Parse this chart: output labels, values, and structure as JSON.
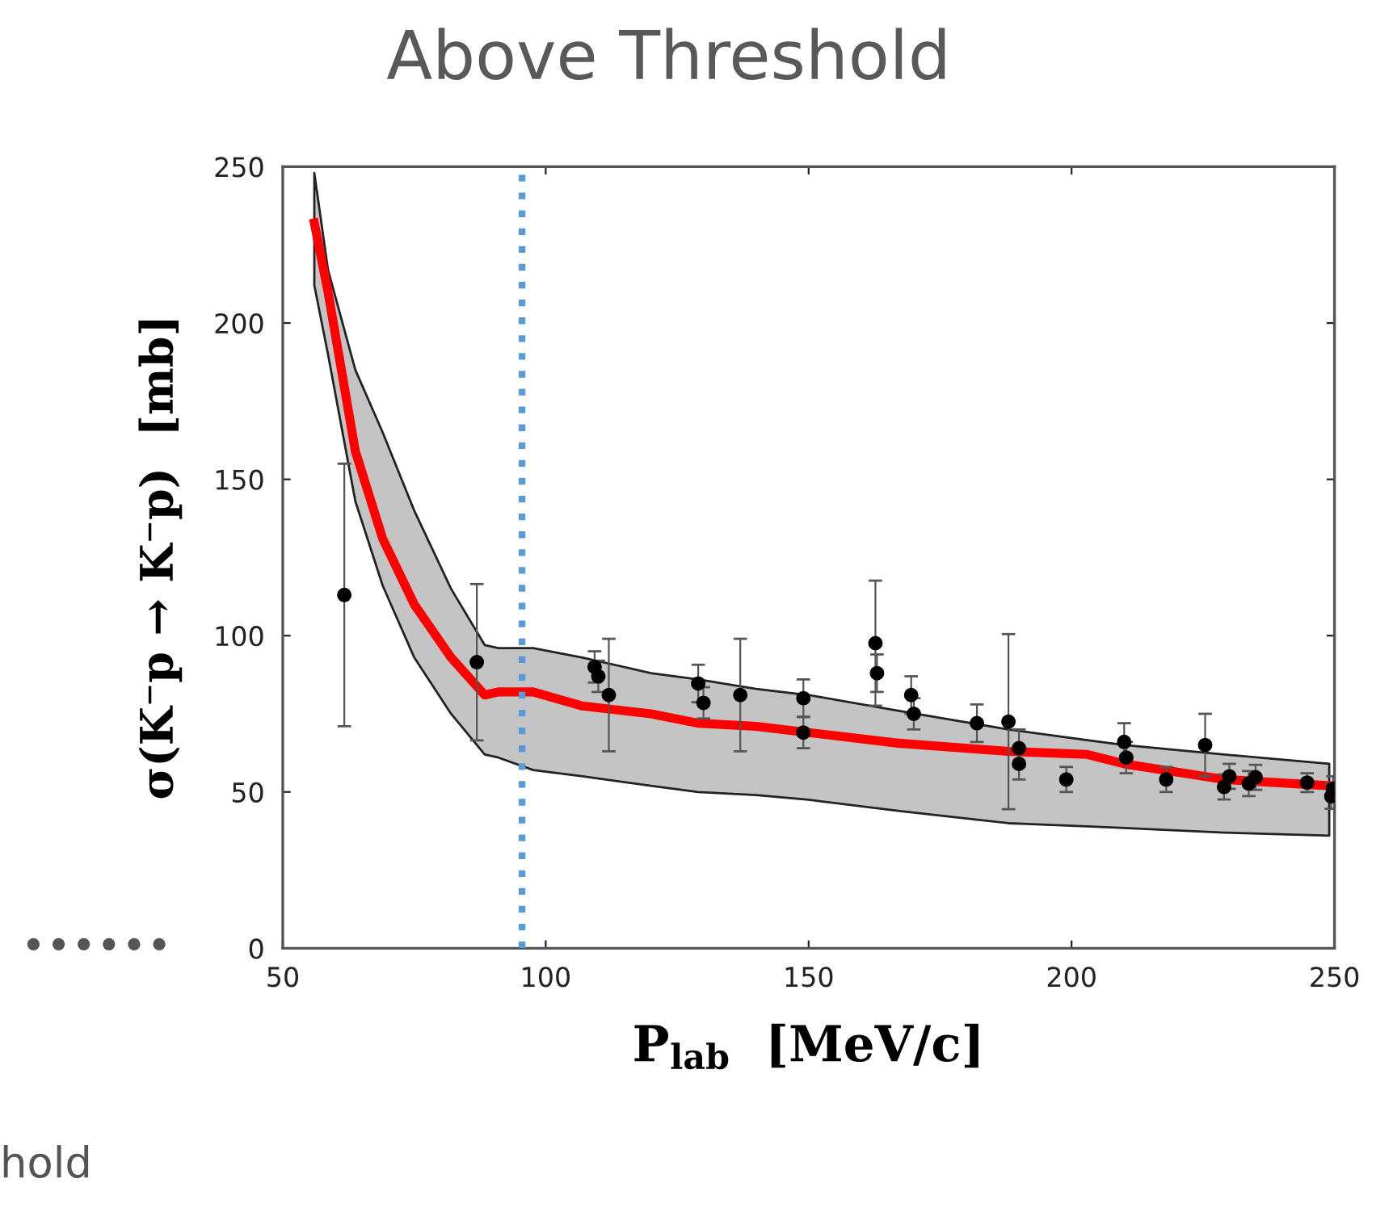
{
  "chart_data": {
    "type": "line",
    "title": "Above Threshold",
    "xlabel": "P$_{lab}$  [MeV/c]",
    "ylabel": "σ(K⁻p → K⁻p)  [mb]",
    "annotations": [
      "••••••",
      "hold"
    ],
    "xlim": [
      50,
      250
    ],
    "ylim": [
      0,
      250
    ],
    "xticks": [
      50,
      100,
      150,
      200,
      250
    ],
    "yticks": [
      0,
      50,
      100,
      150,
      200,
      250
    ],
    "grid": false,
    "legend": false,
    "ref_lines": [
      {
        "axis": "x",
        "value": 95.5,
        "color": "#5b9bd5",
        "line_style": "dotted"
      }
    ],
    "series": [
      {
        "color": "#ff0000",
        "marker": "none",
        "line_style": "solid",
        "x": [
          56,
          58.6,
          63.8,
          69,
          75,
          82,
          88.4,
          91,
          97.6,
          107,
          120,
          129,
          140,
          150,
          167,
          188,
          203,
          210,
          229,
          249
        ],
        "values": [
          232,
          210,
          159,
          131,
          110,
          93,
          81,
          82,
          82,
          77.5,
          75,
          72,
          71,
          69,
          65.6,
          63,
          62,
          59,
          54,
          52
        ],
        "upper": [
          248,
          217,
          185,
          165,
          140,
          115,
          97,
          96,
          96,
          93,
          88,
          86,
          83,
          81,
          76,
          70,
          66.6,
          65,
          62,
          59
        ],
        "lower": [
          212,
          190,
          143,
          116,
          93,
          75,
          62,
          61,
          57,
          55,
          52,
          50,
          49,
          47.5,
          44,
          40,
          39,
          38.5,
          37,
          36
        ]
      },
      {
        "type": "scatter",
        "color": "#000000",
        "marker": "circle",
        "x": [
          61.7,
          86.9,
          109.3,
          110,
          112,
          129,
          130,
          137,
          149,
          149,
          162.7,
          163,
          169.5,
          170,
          182,
          188,
          190,
          190,
          199,
          210,
          210.4,
          218,
          225.4,
          229,
          230,
          233.7,
          235,
          244.8,
          249.4,
          249.7
        ],
        "values": [
          113,
          91.5,
          90,
          87,
          81,
          84.7,
          78.5,
          81,
          80,
          69,
          97.6,
          88,
          81,
          75,
          72,
          72.5,
          64,
          59,
          54,
          66,
          61,
          54,
          65,
          51.6,
          55,
          52.7,
          54.7,
          53,
          48.6,
          51
        ],
        "errors": [
          42,
          25,
          5,
          5,
          18,
          6,
          5,
          18,
          6,
          5,
          20,
          6,
          6,
          5,
          6,
          28,
          6,
          5,
          4,
          6,
          5,
          4,
          10,
          4,
          4,
          4,
          4,
          3,
          4,
          4
        ]
      }
    ]
  }
}
